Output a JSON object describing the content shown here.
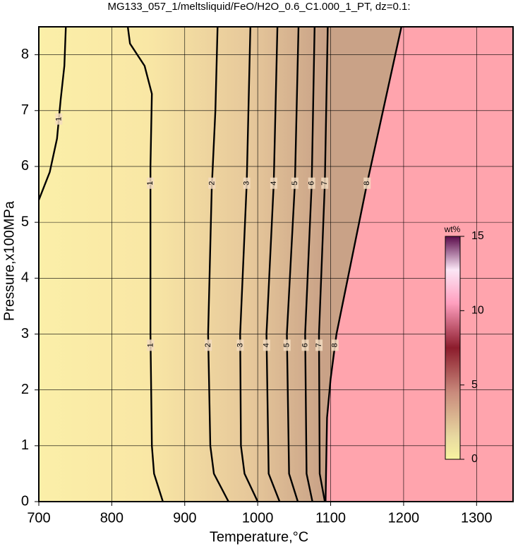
{
  "chart_data": {
    "type": "contour",
    "title": "MG133_057_1/meltsliquid/FeO/H2O_0.6_C1.000_1_PT, dz=0.1:",
    "x_label": "Temperature,°C",
    "y_label": "Pressure,x100MPa",
    "xlim": [
      700,
      1350
    ],
    "xticks": [
      700,
      800,
      900,
      1000,
      1100,
      1200,
      1300
    ],
    "ylim": [
      0,
      8.5
    ],
    "yticks": [
      0,
      1,
      2,
      3,
      4,
      5,
      6,
      7,
      8
    ],
    "grid": true,
    "contours": [
      {
        "level": 1,
        "x": [
          700,
          715,
          725,
          730,
          735,
          737
        ],
        "y": [
          5.4,
          5.9,
          6.5,
          7.2,
          7.8,
          8.5
        ]
      },
      {
        "level": 1,
        "x": [
          870,
          858,
          855,
          853,
          853,
          855,
          845,
          825,
          822
        ],
        "y": [
          0,
          0.5,
          1,
          3,
          6,
          7.3,
          7.8,
          8.2,
          8.5
        ]
      },
      {
        "level": 2,
        "x": [
          960,
          940,
          935,
          932,
          937,
          942,
          945
        ],
        "y": [
          0,
          0.5,
          1,
          3,
          5.6,
          7,
          8.5
        ]
      },
      {
        "level": 3,
        "x": [
          1000,
          982,
          977,
          976,
          985,
          990
        ],
        "y": [
          0,
          0.5,
          1,
          3,
          5.7,
          8.5
        ]
      },
      {
        "level": 4,
        "x": [
          1030,
          1015,
          1012,
          1022,
          1027
        ],
        "y": [
          0,
          0.5,
          3,
          5.7,
          8.5
        ]
      },
      {
        "level": 5,
        "x": [
          1055,
          1043,
          1040,
          1051,
          1056
        ],
        "y": [
          0,
          0.5,
          3,
          5.7,
          8.5
        ]
      },
      {
        "level": 6,
        "x": [
          1075,
          1067,
          1065,
          1074,
          1078
        ],
        "y": [
          0,
          0.5,
          3,
          5.7,
          8.5
        ]
      },
      {
        "level": 7,
        "x": [
          1092,
          1085,
          1084,
          1092,
          1096
        ],
        "y": [
          0,
          0.5,
          3,
          5.7,
          8.5
        ]
      },
      {
        "level": 8,
        "x": [
          1093,
          1095,
          1100,
          1108,
          1150,
          1197
        ],
        "y": [
          0,
          1.5,
          2.2,
          3,
          5.7,
          8.5
        ]
      }
    ],
    "colorbar": {
      "label": "wt%",
      "lim": [
        0,
        15
      ],
      "ticks": [
        0,
        5,
        10,
        15
      ]
    }
  }
}
